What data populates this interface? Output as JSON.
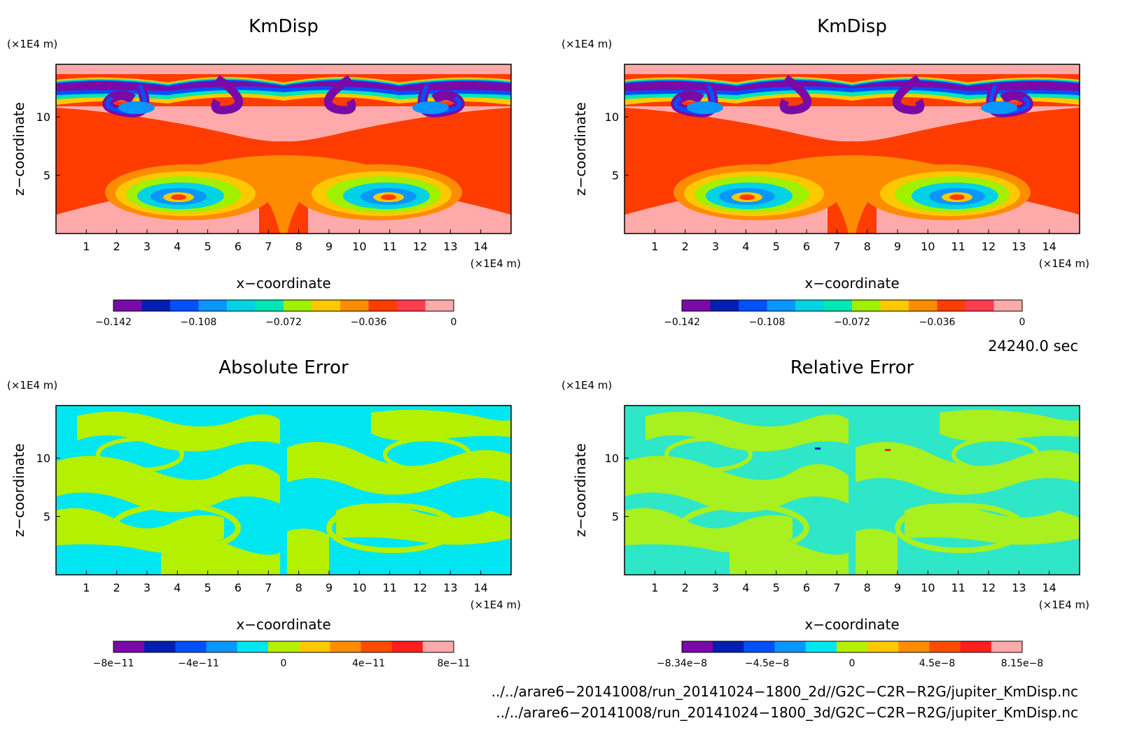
{
  "colors": {
    "kmdisp_levels": [
      "#7a0aa8",
      "#001eb4",
      "#0050ff",
      "#0a96ff",
      "#00d2e6",
      "#00e6b4",
      "#a0f000",
      "#ffc800",
      "#ff8c00",
      "#ff3c00",
      "#ff3c50",
      "#ffaaaa"
    ],
    "error_levels": [
      "#7a0aa8",
      "#001eb4",
      "#0050ff",
      "#0a96ff",
      "#00e6f0",
      "#b4f000",
      "#ffc800",
      "#ff8c00",
      "#ff4b00",
      "#ff1e1e",
      "#ffaaaa"
    ]
  },
  "chart_data": [
    {
      "id": "top-left",
      "type": "heatmap",
      "title": "KmDisp",
      "xlabel": "x−coordinate",
      "ylabel": "z−coordinate",
      "x_unit": "(×1E4 m)",
      "y_unit": "(×1E4 m)",
      "xlim": [
        0,
        15
      ],
      "ylim": [
        0,
        14.5
      ],
      "x_ticks": [
        1,
        2,
        3,
        4,
        5,
        6,
        7,
        8,
        9,
        10,
        11,
        12,
        13,
        14
      ],
      "y_ticks": [
        5,
        10
      ],
      "colorbar_ticks": [
        "−0.142",
        "−0.108",
        "−0.072",
        "−0.036",
        "0"
      ],
      "style": "kmdisp"
    },
    {
      "id": "top-right",
      "type": "heatmap",
      "title": "KmDisp",
      "xlabel": "x−coordinate",
      "ylabel": "z−coordinate",
      "x_unit": "(×1E4 m)",
      "y_unit": "(×1E4 m)",
      "xlim": [
        0,
        15
      ],
      "ylim": [
        0,
        14.5
      ],
      "x_ticks": [
        1,
        2,
        3,
        4,
        5,
        6,
        7,
        8,
        9,
        10,
        11,
        12,
        13,
        14
      ],
      "y_ticks": [
        5,
        10
      ],
      "colorbar_ticks": [
        "−0.142",
        "−0.108",
        "−0.072",
        "−0.036",
        "0"
      ],
      "style": "kmdisp"
    },
    {
      "id": "bottom-left",
      "type": "heatmap",
      "title": "Absolute Error",
      "xlabel": "x−coordinate",
      "ylabel": "z−coordinate",
      "x_unit": "(×1E4 m)",
      "y_unit": "(×1E4 m)",
      "xlim": [
        0,
        15
      ],
      "ylim": [
        0,
        14.5
      ],
      "x_ticks": [
        1,
        2,
        3,
        4,
        5,
        6,
        7,
        8,
        9,
        10,
        11,
        12,
        13,
        14
      ],
      "y_ticks": [
        5,
        10
      ],
      "colorbar_ticks": [
        "−8e−11",
        "−4e−11",
        "0",
        "4e−11",
        "8e−11"
      ],
      "style": "abs"
    },
    {
      "id": "bottom-right",
      "type": "heatmap",
      "title": "Relative Error",
      "xlabel": "x−coordinate",
      "ylabel": "z−coordinate",
      "x_unit": "(×1E4 m)",
      "y_unit": "(×1E4 m)",
      "xlim": [
        0,
        15
      ],
      "ylim": [
        0,
        14.5
      ],
      "x_ticks": [
        1,
        2,
        3,
        4,
        5,
        6,
        7,
        8,
        9,
        10,
        11,
        12,
        13,
        14
      ],
      "y_ticks": [
        5,
        10
      ],
      "colorbar_ticks": [
        "−8.34e−8",
        "−4.5e−8",
        "0",
        "4.5e−8",
        "8.15e−8"
      ],
      "style": "rel"
    }
  ],
  "time_label": "24240.0 sec",
  "file_paths": [
    "../../arare6−20141008/run_20141024−1800_2d//G2C−C2R−R2G/jupiter_KmDisp.nc",
    "../../arare6−20141008/run_20141024−1800_3d/G2C−C2R−R2G/jupiter_KmDisp.nc"
  ]
}
